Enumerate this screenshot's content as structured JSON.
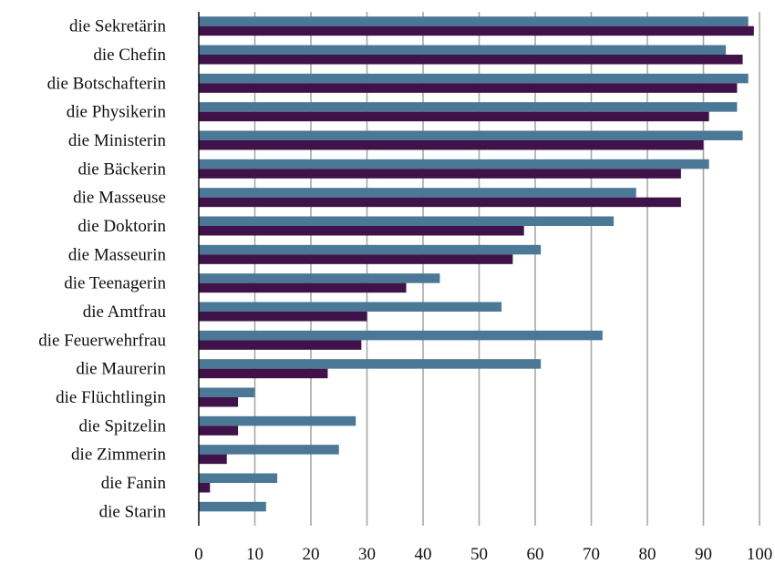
{
  "chart_data": {
    "type": "bar",
    "orientation": "horizontal",
    "title": "",
    "xlabel": "",
    "ylabel": "",
    "xlim": [
      0,
      100
    ],
    "x_ticks": [
      "0",
      "10",
      "20",
      "30",
      "40",
      "50",
      "60",
      "70",
      "80",
      "90",
      "100"
    ],
    "grid": true,
    "legend": "none",
    "categories": [
      "die Sekretärin",
      "die Chefin",
      "die Botschafterin",
      "die Physikerin",
      "die Ministerin",
      "die Bäckerin",
      "die Masseuse",
      "die Doktorin",
      "die Masseurin",
      "die Teenagerin",
      "die Amtfrau",
      "die Feuerwehrfrau",
      "die Maurerin",
      "die Flüchtlingin",
      "die Spitzelin",
      "die Zimmerin",
      "die Fanin",
      "die Starin"
    ],
    "series": [
      {
        "color": "#4a7896",
        "values": [
          98,
          94,
          98,
          96,
          97,
          91,
          78,
          74,
          61,
          43,
          54,
          72,
          61,
          10,
          28,
          25,
          14,
          12
        ]
      },
      {
        "color": "#3f1349",
        "values": [
          99,
          97,
          96,
          91,
          90,
          86,
          86,
          58,
          56,
          37,
          30,
          29,
          23,
          7,
          7,
          5,
          2,
          0
        ]
      }
    ]
  }
}
